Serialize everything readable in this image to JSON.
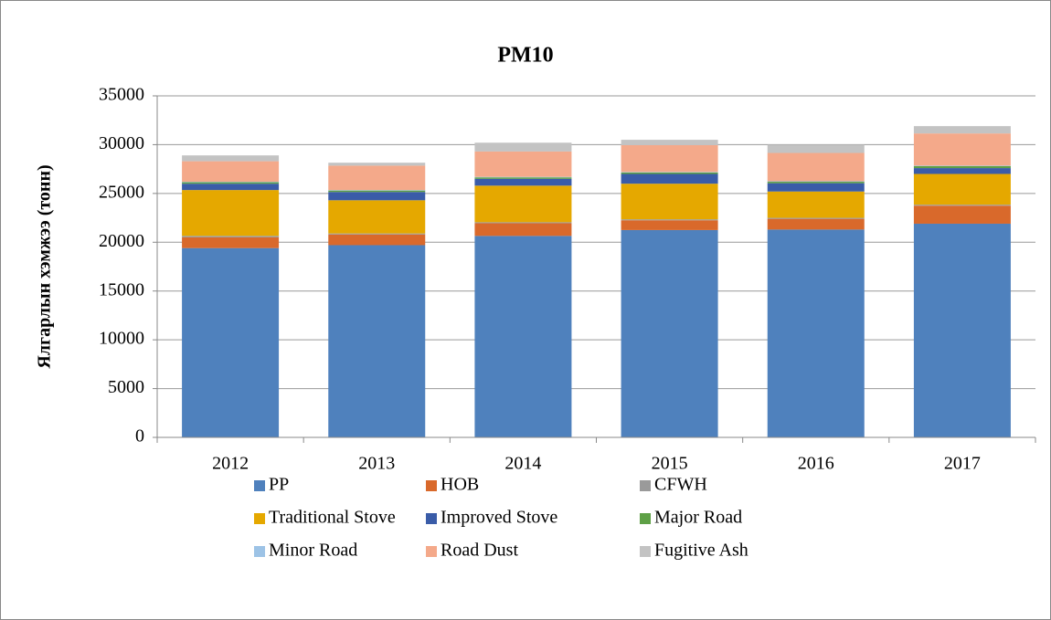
{
  "chart_data": {
    "type": "stacked_bar",
    "title": "PM10",
    "y_label": "Ялгарлын хэмжээ (тонн)",
    "categories": [
      "2012",
      "2013",
      "2014",
      "2015",
      "2016",
      "2017"
    ],
    "series": [
      {
        "name": "PP",
        "color": "#4f81bd",
        "values": [
          19400,
          19700,
          20650,
          21250,
          21300,
          21900
        ]
      },
      {
        "name": "HOB",
        "color": "#d9692b",
        "values": [
          1100,
          1100,
          1300,
          1000,
          1100,
          1850
        ]
      },
      {
        "name": "CFWH",
        "color": "#9a9a9a",
        "values": [
          150,
          100,
          100,
          100,
          100,
          100
        ]
      },
      {
        "name": "Traditional Stove",
        "color": "#e5a800",
        "values": [
          4700,
          3400,
          3750,
          3650,
          2700,
          3150
        ]
      },
      {
        "name": "Improved Stove",
        "color": "#3a5ca8",
        "values": [
          650,
          850,
          700,
          1000,
          850,
          600
        ]
      },
      {
        "name": "Major Road",
        "color": "#5ea046",
        "values": [
          150,
          150,
          150,
          150,
          150,
          200
        ]
      },
      {
        "name": "Minor Road",
        "color": "#9dc3e6",
        "values": [
          50,
          50,
          50,
          50,
          50,
          50
        ]
      },
      {
        "name": "Road Dust",
        "color": "#f4a98a",
        "values": [
          2100,
          2500,
          2600,
          2750,
          2900,
          3300
        ]
      },
      {
        "name": "Fugitive Ash",
        "color": "#c3c3c3",
        "values": [
          600,
          300,
          900,
          550,
          850,
          750
        ]
      }
    ],
    "ylim": [
      0,
      35000
    ],
    "yticks": [
      0,
      5000,
      10000,
      15000,
      20000,
      25000,
      30000,
      35000
    ],
    "grid": true,
    "legend": "bottom"
  }
}
